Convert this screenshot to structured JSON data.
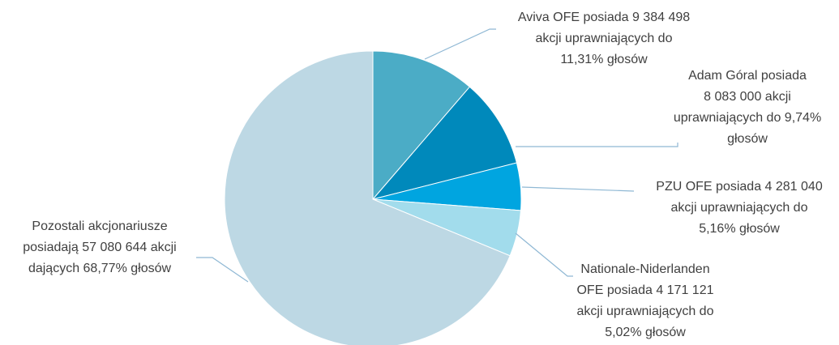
{
  "chart_data": {
    "type": "pie",
    "categories": [
      "Aviva OFE",
      "Adam Góral",
      "PZU OFE",
      "Nationale-Niderlanden OFE",
      "Pozostali akcjonariusze"
    ],
    "values": [
      11.31,
      9.74,
      5.16,
      5.02,
      68.77
    ],
    "colors": [
      "#4bacc6",
      "#0089bb",
      "#00a5e0",
      "#a2dcec",
      "#bdd8e4"
    ],
    "labels": [
      [
        "Aviva OFE posiada 9 384 498",
        "akcji uprawniających do",
        "11,31% głosów"
      ],
      [
        "Adam Góral posiada",
        "8 083 000 akcji",
        "uprawniających do 9,74%",
        "głosów"
      ],
      [
        "PZU OFE posiada 4 281 040",
        "akcji uprawniających do",
        "5,16% głosów"
      ],
      [
        "Nationale-Niderlanden",
        "OFE posiada 4 171 121",
        "akcji uprawniających do",
        "5,02% głosów"
      ],
      [
        "Pozostali akcjonariusze",
        "posiadają 57 080 644 akcji",
        "dających 68,77% głosów"
      ]
    ]
  }
}
